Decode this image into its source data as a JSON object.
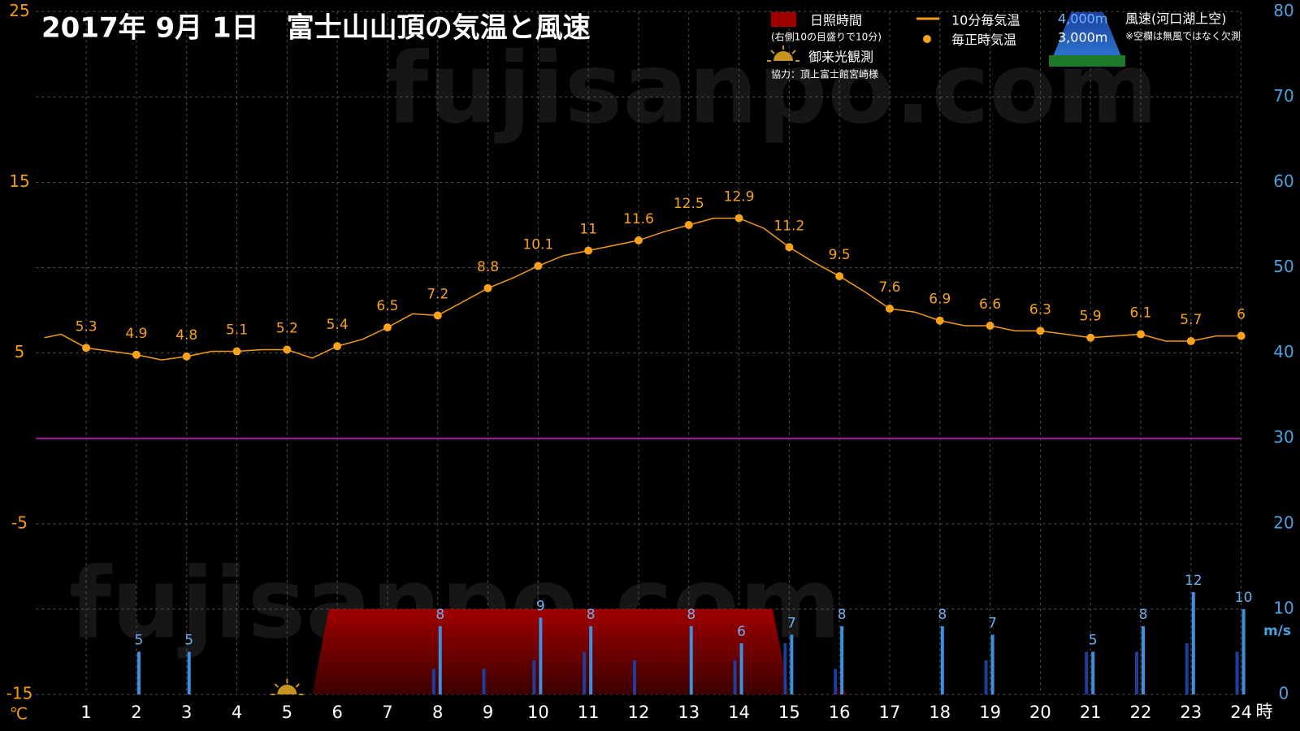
{
  "chart_data": {
    "type": "line",
    "title": "2017年  9月  1日　富士山山頂の気温と風速",
    "watermark": "fujisanpo.com",
    "x_unit": "時",
    "y_unit": "℃",
    "y2_unit": "m/s",
    "xlim": [
      0,
      24
    ],
    "xticks": [
      1,
      2,
      3,
      4,
      5,
      6,
      7,
      8,
      9,
      10,
      11,
      12,
      13,
      14,
      15,
      16,
      17,
      18,
      19,
      20,
      21,
      22,
      23,
      24
    ],
    "ylim": [
      -15,
      25
    ],
    "yticks": [
      -15,
      -5,
      5,
      15,
      25
    ],
    "y2lim": [
      0,
      80
    ],
    "y2ticks": [
      0,
      10,
      20,
      30,
      40,
      50,
      60,
      70,
      80
    ],
    "grid": true,
    "freezing_line": {
      "value": 0,
      "color": "#a020a0"
    },
    "sunshine_note": "(右側10の目盛りで10分)",
    "goraikou": {
      "label": "御来光観測",
      "x": 5
    },
    "credit": "協力：頂上富士館宮崎様",
    "wind_title": "風速(河口湖上空)",
    "wind_note": "※空欄は無風ではなく欠測",
    "series": [
      {
        "name": "日照時間",
        "type": "area",
        "axis": "y2",
        "color": "#a00000",
        "x": [
          5.5,
          5.83,
          14.67,
          15.0,
          15.83,
          16.0,
          16.17
        ],
        "values": [
          0,
          10,
          10,
          0,
          0,
          1,
          0
        ]
      },
      {
        "name": "4,000m",
        "type": "bar",
        "axis": "y2",
        "color": "#1c3f9e",
        "x": [
          8,
          9,
          10,
          11,
          12,
          14,
          15,
          16,
          19,
          21,
          22,
          23,
          24
        ],
        "values": [
          3,
          3,
          4,
          5,
          4,
          4,
          6,
          3,
          4,
          5,
          5,
          6,
          5
        ]
      },
      {
        "name": "3,000m",
        "type": "bar",
        "axis": "y2",
        "color": "#3d8fe0",
        "x": [
          2,
          3,
          8,
          10,
          11,
          13,
          14,
          15,
          16,
          18,
          19,
          21,
          22,
          23,
          24
        ],
        "values": [
          5,
          5,
          8,
          9,
          8,
          8,
          6,
          7,
          8,
          8,
          7,
          5,
          8,
          12,
          10
        ]
      },
      {
        "name": "10分毎気温",
        "type": "line",
        "color": "#f39a12",
        "x": [
          0.17,
          0.5,
          1,
          1.5,
          2,
          2.5,
          3,
          3.5,
          4,
          4.5,
          5,
          5.5,
          6,
          6.5,
          7,
          7.5,
          8,
          8.5,
          9,
          9.5,
          10,
          10.5,
          11,
          11.5,
          12,
          12.5,
          13,
          13.5,
          14,
          14.5,
          15,
          15.5,
          16,
          16.5,
          17,
          17.5,
          18,
          18.5,
          19,
          19.5,
          20,
          20.5,
          21,
          21.5,
          22,
          22.5,
          23,
          23.5,
          24
        ],
        "values": [
          5.9,
          6.1,
          5.3,
          5.1,
          4.9,
          4.6,
          4.8,
          5.1,
          5.1,
          5.2,
          5.2,
          4.7,
          5.4,
          5.8,
          6.5,
          7.3,
          7.2,
          8.0,
          8.8,
          9.4,
          10.1,
          10.7,
          11,
          11.3,
          11.6,
          12.1,
          12.5,
          12.9,
          12.9,
          12.3,
          11.2,
          10.3,
          9.5,
          8.6,
          7.6,
          7.4,
          6.9,
          6.6,
          6.6,
          6.3,
          6.3,
          6.1,
          5.9,
          6.0,
          6.1,
          5.7,
          5.7,
          6.0,
          6
        ]
      },
      {
        "name": "毎正時気温",
        "type": "scatter",
        "color": "#f7a21b",
        "x": [
          1,
          2,
          3,
          4,
          5,
          6,
          7,
          8,
          9,
          10,
          11,
          12,
          13,
          14,
          15,
          16,
          17,
          18,
          19,
          20,
          21,
          22,
          23,
          24
        ],
        "values": [
          5.3,
          4.9,
          4.8,
          5.1,
          5.2,
          5.4,
          6.5,
          7.2,
          8.8,
          10.1,
          11,
          11.6,
          12.5,
          12.9,
          11.2,
          9.5,
          7.6,
          6.9,
          6.6,
          6.3,
          5.9,
          6.1,
          5.7,
          6
        ]
      }
    ]
  }
}
